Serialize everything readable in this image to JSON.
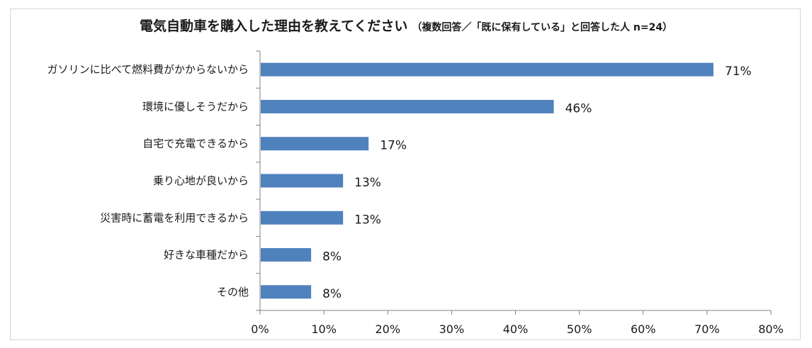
{
  "chart_data": {
    "type": "bar",
    "orientation": "horizontal",
    "title": "電気自動車を購入した理由を教えてください",
    "subtitle": "（複数回答／「既に保有している」と回答した人 n=24）",
    "categories": [
      "ガソリンに比べて燃料費がかからないから",
      "環境に優しそうだから",
      "自宅で充電できるから",
      "乗り心地が良いから",
      "災害時に蓄電を利用できるから",
      "好きな車種だから",
      "その他"
    ],
    "values": [
      71,
      46,
      17,
      13,
      13,
      8,
      8
    ],
    "value_labels": [
      "71%",
      "46%",
      "17%",
      "13%",
      "13%",
      "8%",
      "8%"
    ],
    "xlim": [
      0,
      80
    ],
    "xticks": [
      0,
      10,
      20,
      30,
      40,
      50,
      60,
      70,
      80
    ],
    "xtick_labels": [
      "0%",
      "10%",
      "20%",
      "30%",
      "40%",
      "50%",
      "60%",
      "70%",
      "80%"
    ],
    "bar_color": "#4f81bd",
    "grid": false,
    "legend": "none"
  }
}
